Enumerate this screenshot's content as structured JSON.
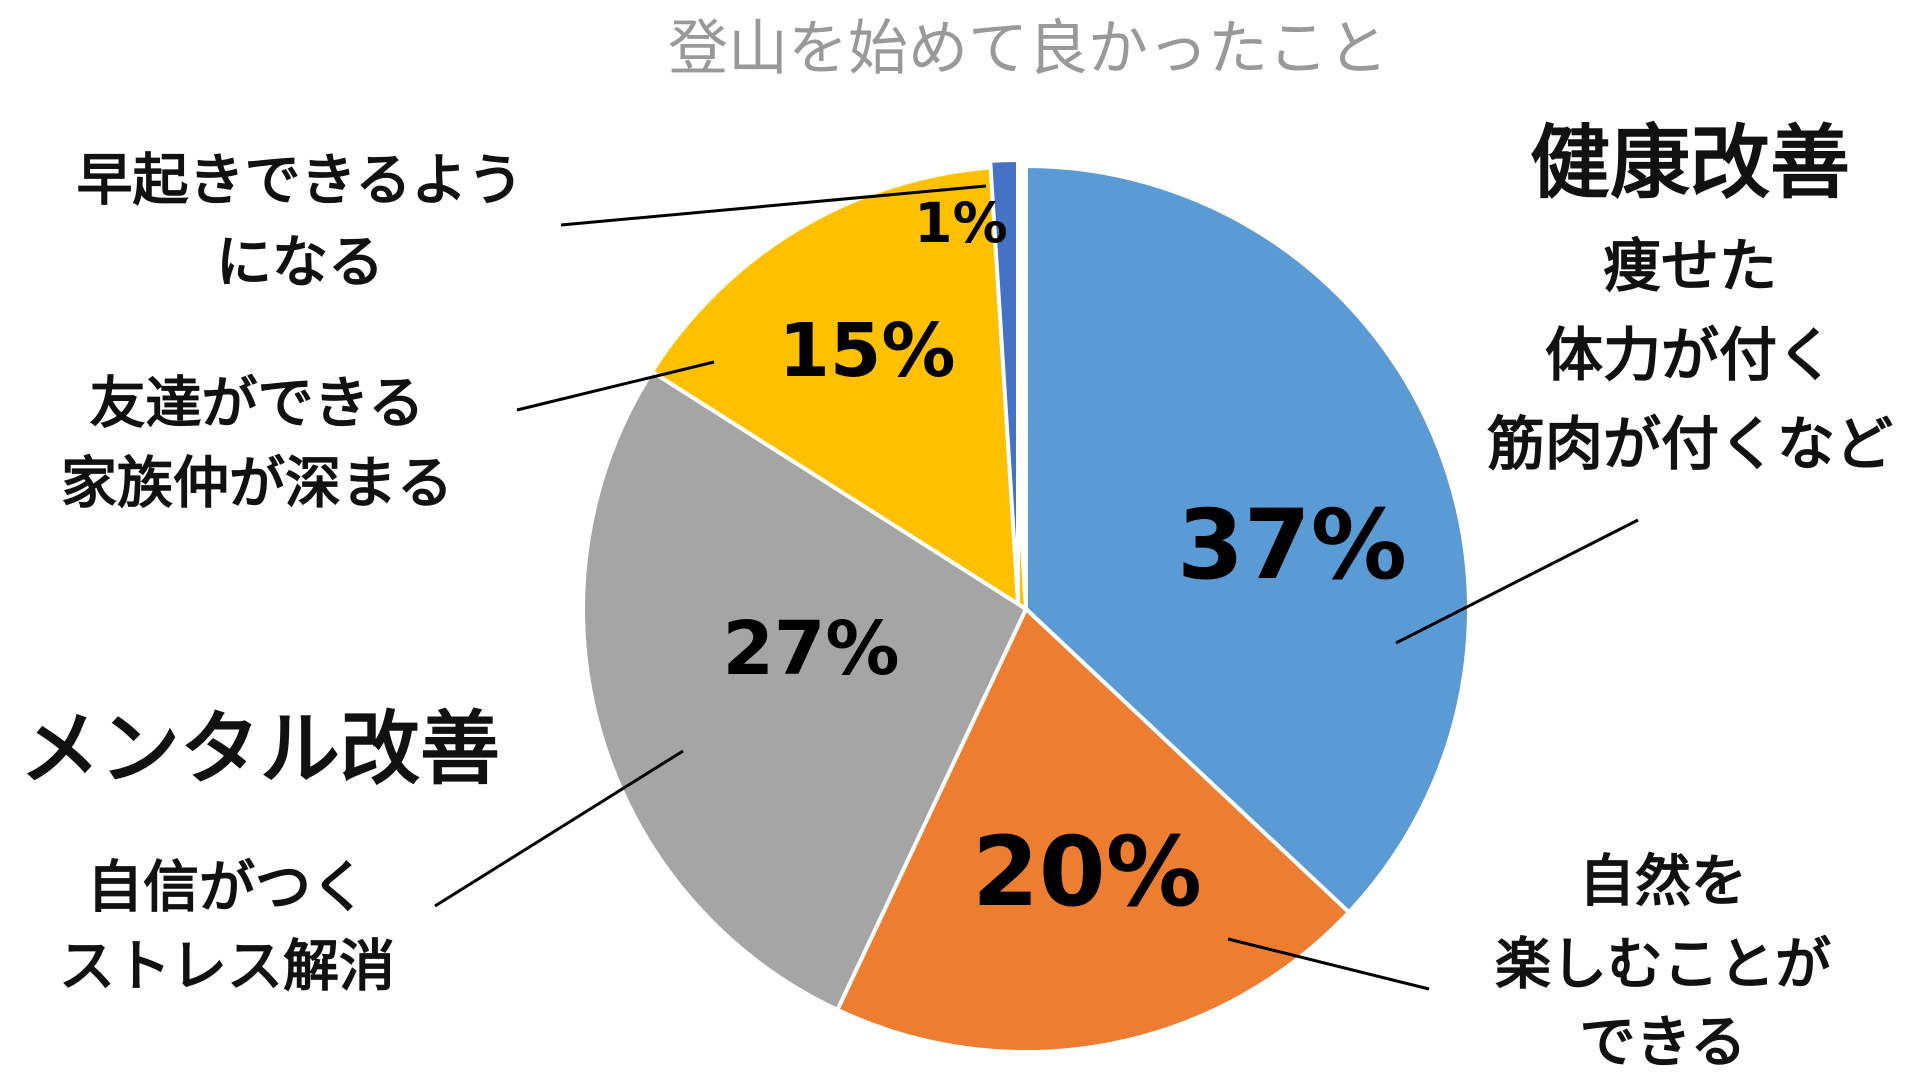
{
  "chart_data": {
    "type": "pie",
    "title": "登山を始めて良かったこと",
    "values": [
      37,
      20,
      27,
      15,
      1
    ],
    "value_labels": [
      "37%",
      "20%",
      "27%",
      "15%",
      "1%"
    ],
    "colors": [
      "#5b9bd5",
      "#ed7d31",
      "#a5a5a5",
      "#ffc000",
      "#4472c4"
    ],
    "annotations": [
      {
        "heading": "健康改善",
        "lines": [
          "痩せた",
          "体力が付く",
          "筋肉が付くなど"
        ]
      },
      {
        "lines": [
          "自然を",
          "楽しむことが",
          "できる"
        ]
      },
      {
        "heading": "メンタル改善",
        "lines": [
          "自信がつく",
          "ストレス解消"
        ]
      },
      {
        "lines": [
          "友達ができる",
          "家族仲が深まる"
        ]
      },
      {
        "lines": [
          "早起きできるよう",
          "になる"
        ]
      }
    ]
  }
}
